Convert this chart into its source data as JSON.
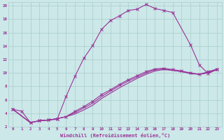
{
  "xlabel": "Windchill (Refroidissement éolien,°C)",
  "background_color": "#cce8e8",
  "grid_color": "#aacccc",
  "line_color": "#993399",
  "xlim": [
    -0.5,
    23.5
  ],
  "ylim": [
    2,
    20.5
  ],
  "xticks": [
    0,
    1,
    2,
    3,
    4,
    5,
    6,
    7,
    8,
    9,
    10,
    11,
    12,
    13,
    14,
    15,
    16,
    17,
    18,
    19,
    20,
    21,
    22,
    23
  ],
  "yticks": [
    2,
    4,
    6,
    8,
    10,
    12,
    14,
    16,
    18,
    20
  ],
  "line1_x": [
    0,
    1,
    2,
    3,
    4,
    5,
    6,
    7,
    8,
    9,
    10,
    11,
    12,
    13,
    14,
    15,
    16,
    17,
    18,
    20,
    21,
    22,
    23
  ],
  "line1_y": [
    4.6,
    4.3,
    2.6,
    2.9,
    3.0,
    3.1,
    6.5,
    9.5,
    12.2,
    14.1,
    16.5,
    17.8,
    18.5,
    19.3,
    19.5,
    20.2,
    19.6,
    19.3,
    19.0,
    14.2,
    11.2,
    9.9,
    10.6
  ],
  "line2_x": [
    0,
    2,
    3,
    4,
    5,
    6,
    7,
    8,
    9,
    10,
    11,
    12,
    13,
    14,
    15,
    16,
    17,
    18,
    19,
    20,
    21,
    22,
    23
  ],
  "line2_y": [
    4.6,
    2.6,
    2.9,
    3.0,
    3.2,
    3.5,
    4.3,
    5.0,
    5.8,
    6.8,
    7.5,
    8.3,
    9.0,
    9.6,
    10.2,
    10.6,
    10.7,
    10.5,
    10.3,
    10.0,
    9.8,
    10.2,
    10.6
  ],
  "line3_x": [
    0,
    2,
    3,
    4,
    5,
    6,
    7,
    8,
    9,
    10,
    11,
    12,
    13,
    14,
    15,
    16,
    17,
    18,
    19,
    20,
    21,
    22,
    23
  ],
  "line3_y": [
    4.6,
    2.6,
    2.9,
    3.0,
    3.2,
    3.5,
    3.9,
    4.5,
    5.2,
    6.2,
    7.0,
    7.8,
    8.5,
    9.2,
    9.8,
    10.3,
    10.5,
    10.4,
    10.2,
    9.9,
    9.8,
    10.0,
    10.5
  ],
  "line4_x": [
    0,
    2,
    3,
    4,
    5,
    6,
    7,
    8,
    9,
    10,
    11,
    12,
    13,
    14,
    15,
    16,
    17,
    18,
    19,
    20,
    21,
    22,
    23
  ],
  "line4_y": [
    4.6,
    2.6,
    2.9,
    3.0,
    3.2,
    3.5,
    4.1,
    4.8,
    5.5,
    6.5,
    7.3,
    8.1,
    8.8,
    9.4,
    10.0,
    10.5,
    10.6,
    10.4,
    10.2,
    10.0,
    9.8,
    10.1,
    10.5
  ]
}
